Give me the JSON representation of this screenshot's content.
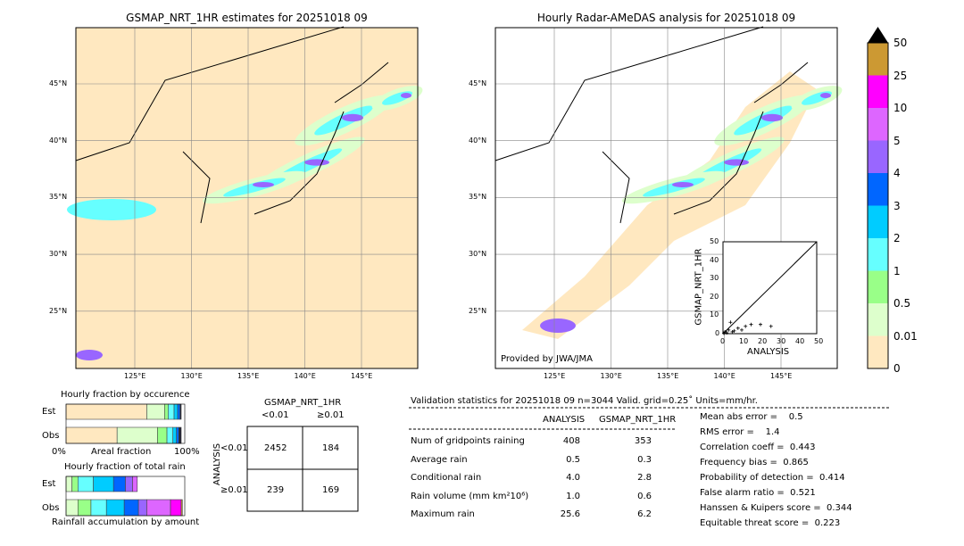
{
  "left_map": {
    "title": "GSMAP_NRT_1HR estimates for 20251018 09"
  },
  "right_map": {
    "title": "Hourly Radar-AMeDAS analysis for 20251018 09",
    "credit": "Provided by JWA/JMA"
  },
  "lat_ticks": [
    "45°N",
    "40°N",
    "35°N",
    "30°N",
    "25°N"
  ],
  "lon_ticks": [
    "125°E",
    "130°E",
    "135°E",
    "140°E",
    "145°E"
  ],
  "colorbar": {
    "labels": [
      "50",
      "25",
      "10",
      "5",
      "4",
      "3",
      "2",
      "1",
      "0.5",
      "0.01",
      "0"
    ],
    "colors": [
      "#cc9933",
      "#ff00ff",
      "#dd66ff",
      "#9966ff",
      "#0066ff",
      "#00ccff",
      "#66ffff",
      "#99ff88",
      "#ddffcc",
      "#ffe8c0"
    ],
    "extend_color": "#000000"
  },
  "scatter": {
    "xlabel": "ANALYSIS",
    "ylabel": "GSMAP_NRT_1HR",
    "ticks": [
      "0",
      "10",
      "20",
      "30",
      "40",
      "50"
    ]
  },
  "occurrence": {
    "title": "Hourly fraction by occurence",
    "est_label": "Est",
    "obs_label": "Obs",
    "xlabel": "Areal fraction",
    "left": "0%",
    "right": "100%"
  },
  "total_rain": {
    "title": "Hourly fraction of total rain",
    "est_label": "Est",
    "obs_label": "Obs",
    "xlabel": "Rainfall accumulation by amount"
  },
  "contingency": {
    "title": "GSMAP_NRT_1HR",
    "col1": "<0.01",
    "col2": "≥0.01",
    "row_axis": "ANALYSIS",
    "row1": "<0.01",
    "row2": "≥0.01",
    "cells": [
      "2452",
      "184",
      "239",
      "169"
    ]
  },
  "validation": {
    "header": "Validation statistics for 20251018 09  n=3044 Valid. grid=0.25˚ Units=mm/hr.",
    "col_a": "ANALYSIS",
    "col_b": "GSMAP_NRT_1HR",
    "rows": [
      {
        "label": "Num of gridpoints raining",
        "a": "408",
        "b": "353"
      },
      {
        "label": "Average rain",
        "a": "0.5",
        "b": "0.3"
      },
      {
        "label": "Conditional rain",
        "a": "4.0",
        "b": "2.8"
      },
      {
        "label": "Rain volume (mm km²10⁶)",
        "a": "1.0",
        "b": "0.6"
      },
      {
        "label": "Maximum rain",
        "a": "25.6",
        "b": "6.2"
      }
    ],
    "scores": [
      "Mean abs error =    0.5",
      "RMS error =    1.4",
      "Correlation coeff =  0.443",
      "Frequency bias =  0.865",
      "Probability of detection =  0.414",
      "False alarm ratio =  0.521",
      "Hanssen & Kuipers score =  0.344",
      "Equitable threat score =  0.223"
    ]
  },
  "chart_data": {
    "type": "bar",
    "occurrence_est": [
      0.68,
      0.15,
      0.03,
      0.05,
      0.03,
      0.02,
      0.01
    ],
    "occurrence_obs": [
      0.43,
      0.34,
      0.08,
      0.05,
      0.03,
      0.02,
      0.02
    ],
    "total_rain_est": [
      0.05,
      0.05,
      0.13,
      0.17,
      0.1,
      0.06,
      0.04
    ],
    "total_rain_obs": [
      0.1,
      0.11,
      0.13,
      0.15,
      0.12,
      0.07,
      0.2,
      0.09,
      0.01
    ],
    "scatter_points": [
      [
        1,
        1
      ],
      [
        2,
        0.5
      ],
      [
        3,
        2
      ],
      [
        5,
        1
      ],
      [
        8,
        3
      ],
      [
        12,
        4
      ],
      [
        15,
        5
      ],
      [
        20,
        5
      ],
      [
        25.6,
        4
      ],
      [
        0.5,
        0.2
      ],
      [
        4,
        6.2
      ],
      [
        6,
        1.5
      ],
      [
        10,
        2
      ]
    ],
    "scatter_range": [
      0,
      50
    ]
  }
}
